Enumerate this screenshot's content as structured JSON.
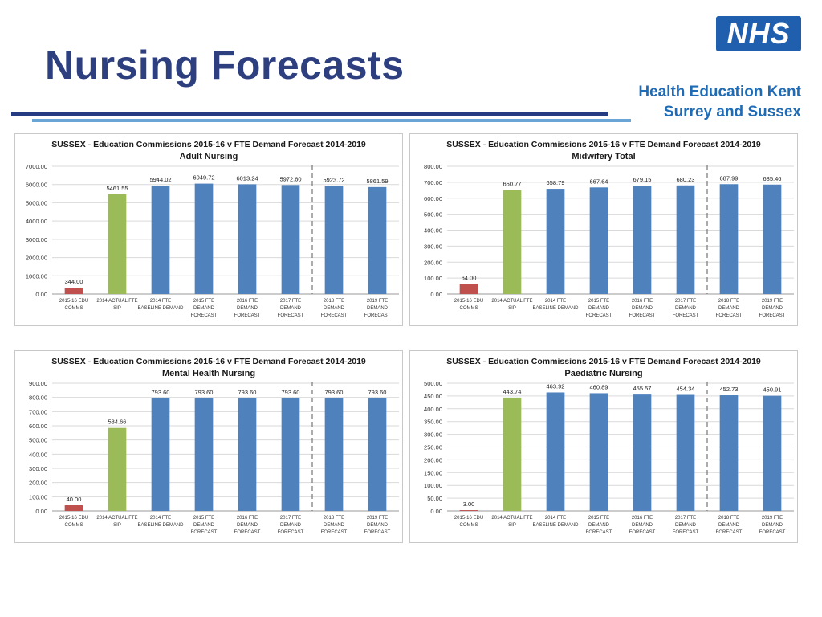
{
  "slide": {
    "title": "Nursing Forecasts",
    "logo_text": "NHS",
    "org_line1": "Health Education Kent",
    "org_line2": "Surrey and Sussex"
  },
  "colors": {
    "title": "#2e3f7f",
    "nhs_blue": "#1f5fae",
    "org_text": "#1f6bb5",
    "rule_dark": "#253b82",
    "rule_light": "#6aa5d8",
    "bar_red": "#c0504d",
    "bar_green": "#9bbb59",
    "bar_blue": "#4f81bd"
  },
  "chart_data": [
    {
      "type": "bar",
      "title": "SUSSEX - Education Commissions 2015-16 v FTE Demand Forecast 2014-2019",
      "subtitle": "Adult Nursing",
      "categories": [
        [
          "2015-16 EDU",
          "COMMS"
        ],
        [
          "2014 ACTUAL FTE",
          "SIP"
        ],
        [
          "2014 FTE",
          "BASELINE DEMAND"
        ],
        [
          "2015 FTE",
          "DEMAND",
          "FORECAST"
        ],
        [
          "2016 FTE",
          "DEMAND",
          "FORECAST"
        ],
        [
          "2017 FTE",
          "DEMAND",
          "FORECAST"
        ],
        [
          "2018 FTE",
          "DEMAND",
          "FORECAST"
        ],
        [
          "2019 FTE",
          "DEMAND",
          "FORECAST"
        ]
      ],
      "values": [
        344.0,
        5461.55,
        5944.02,
        6049.72,
        6013.24,
        5972.6,
        5923.72,
        5861.59
      ],
      "labels": [
        "344.00",
        "5461.55",
        "5944.02",
        "6049.72",
        "6013.24",
        "5972.60",
        "5923.72",
        "5861.59"
      ],
      "bar_colors": [
        "red",
        "green",
        "blue",
        "blue",
        "blue",
        "blue",
        "blue",
        "blue"
      ],
      "ylim": [
        0,
        7000
      ],
      "yticks": [
        "0.00",
        "1000.00",
        "2000.00",
        "3000.00",
        "4000.00",
        "5000.00",
        "6000.00",
        "7000.00"
      ],
      "divider_after": 5
    },
    {
      "type": "bar",
      "title": "SUSSEX - Education Commissions 2015-16 v FTE Demand Forecast 2014-2019",
      "subtitle": "Midwifery Total",
      "categories": [
        [
          "2015-16 EDU",
          "COMMS"
        ],
        [
          "2014 ACTUAL FTE",
          "SIP"
        ],
        [
          "2014 FTE",
          "BASELINE DEMAND"
        ],
        [
          "2015 FTE",
          "DEMAND",
          "FORECAST"
        ],
        [
          "2016 FTE",
          "DEMAND",
          "FORECAST"
        ],
        [
          "2017 FTE",
          "DEMAND",
          "FORECAST"
        ],
        [
          "2018 FTE",
          "DEMAND",
          "FORECAST"
        ],
        [
          "2019 FTE",
          "DEMAND",
          "FORECAST"
        ]
      ],
      "values": [
        64.0,
        650.77,
        658.79,
        667.64,
        679.15,
        680.23,
        687.99,
        685.46
      ],
      "labels": [
        "64.00",
        "650.77",
        "658.79",
        "667.64",
        "679.15",
        "680.23",
        "687.99",
        "685.46"
      ],
      "bar_colors": [
        "red",
        "green",
        "blue",
        "blue",
        "blue",
        "blue",
        "blue",
        "blue"
      ],
      "ylim": [
        0,
        800
      ],
      "yticks": [
        "0.00",
        "100.00",
        "200.00",
        "300.00",
        "400.00",
        "500.00",
        "600.00",
        "700.00",
        "800.00"
      ],
      "divider_after": 5
    },
    {
      "type": "bar",
      "title": "SUSSEX - Education Commissions 2015-16 v FTE Demand Forecast 2014-2019",
      "subtitle": "Mental Health Nursing",
      "categories": [
        [
          "2015-16 EDU",
          "COMMS"
        ],
        [
          "2014 ACTUAL FTE",
          "SIP"
        ],
        [
          "2014 FTE",
          "BASELINE DEMAND"
        ],
        [
          "2015 FTE",
          "DEMAND",
          "FORECAST"
        ],
        [
          "2016 FTE",
          "DEMAND",
          "FORECAST"
        ],
        [
          "2017 FTE",
          "DEMAND",
          "FORECAST"
        ],
        [
          "2018 FTE",
          "DEMAND",
          "FORECAST"
        ],
        [
          "2019 FTE",
          "DEMAND",
          "FORECAST"
        ]
      ],
      "values": [
        40.0,
        584.66,
        793.6,
        793.6,
        793.6,
        793.6,
        793.6,
        793.6
      ],
      "labels": [
        "40.00",
        "584.66",
        "793.60",
        "793.60",
        "793.60",
        "793.60",
        "793.60",
        "793.60"
      ],
      "bar_colors": [
        "red",
        "green",
        "blue",
        "blue",
        "blue",
        "blue",
        "blue",
        "blue"
      ],
      "ylim": [
        0,
        900
      ],
      "yticks": [
        "0.00",
        "100.00",
        "200.00",
        "300.00",
        "400.00",
        "500.00",
        "600.00",
        "700.00",
        "800.00",
        "900.00"
      ],
      "divider_after": 5
    },
    {
      "type": "bar",
      "title": "SUSSEX - Education Commissions 2015-16 v FTE Demand Forecast 2014-2019",
      "subtitle": "Paediatric Nursing",
      "categories": [
        [
          "2015-16 EDU",
          "COMMS"
        ],
        [
          "2014 ACTUAL FTE",
          "SIP"
        ],
        [
          "2014 FTE",
          "BASELINE DEMAND"
        ],
        [
          "2015 FTE",
          "DEMAND",
          "FORECAST"
        ],
        [
          "2016 FTE",
          "DEMAND",
          "FORECAST"
        ],
        [
          "2017 FTE",
          "DEMAND",
          "FORECAST"
        ],
        [
          "2018 FTE",
          "DEMAND",
          "FORECAST"
        ],
        [
          "2019 FTE",
          "DEMAND",
          "FORECAST"
        ]
      ],
      "values": [
        3.0,
        443.74,
        463.92,
        460.89,
        455.57,
        454.34,
        452.73,
        450.91
      ],
      "labels": [
        "3.00",
        "443.74",
        "463.92",
        "460.89",
        "455.57",
        "454.34",
        "452.73",
        "450.91"
      ],
      "bar_colors": [
        "red",
        "green",
        "blue",
        "blue",
        "blue",
        "blue",
        "blue",
        "blue"
      ],
      "ylim": [
        0,
        500
      ],
      "yticks": [
        "0.00",
        "50.00",
        "100.00",
        "150.00",
        "200.00",
        "250.00",
        "300.00",
        "350.00",
        "400.00",
        "450.00",
        "500.00"
      ],
      "divider_after": 5
    }
  ]
}
